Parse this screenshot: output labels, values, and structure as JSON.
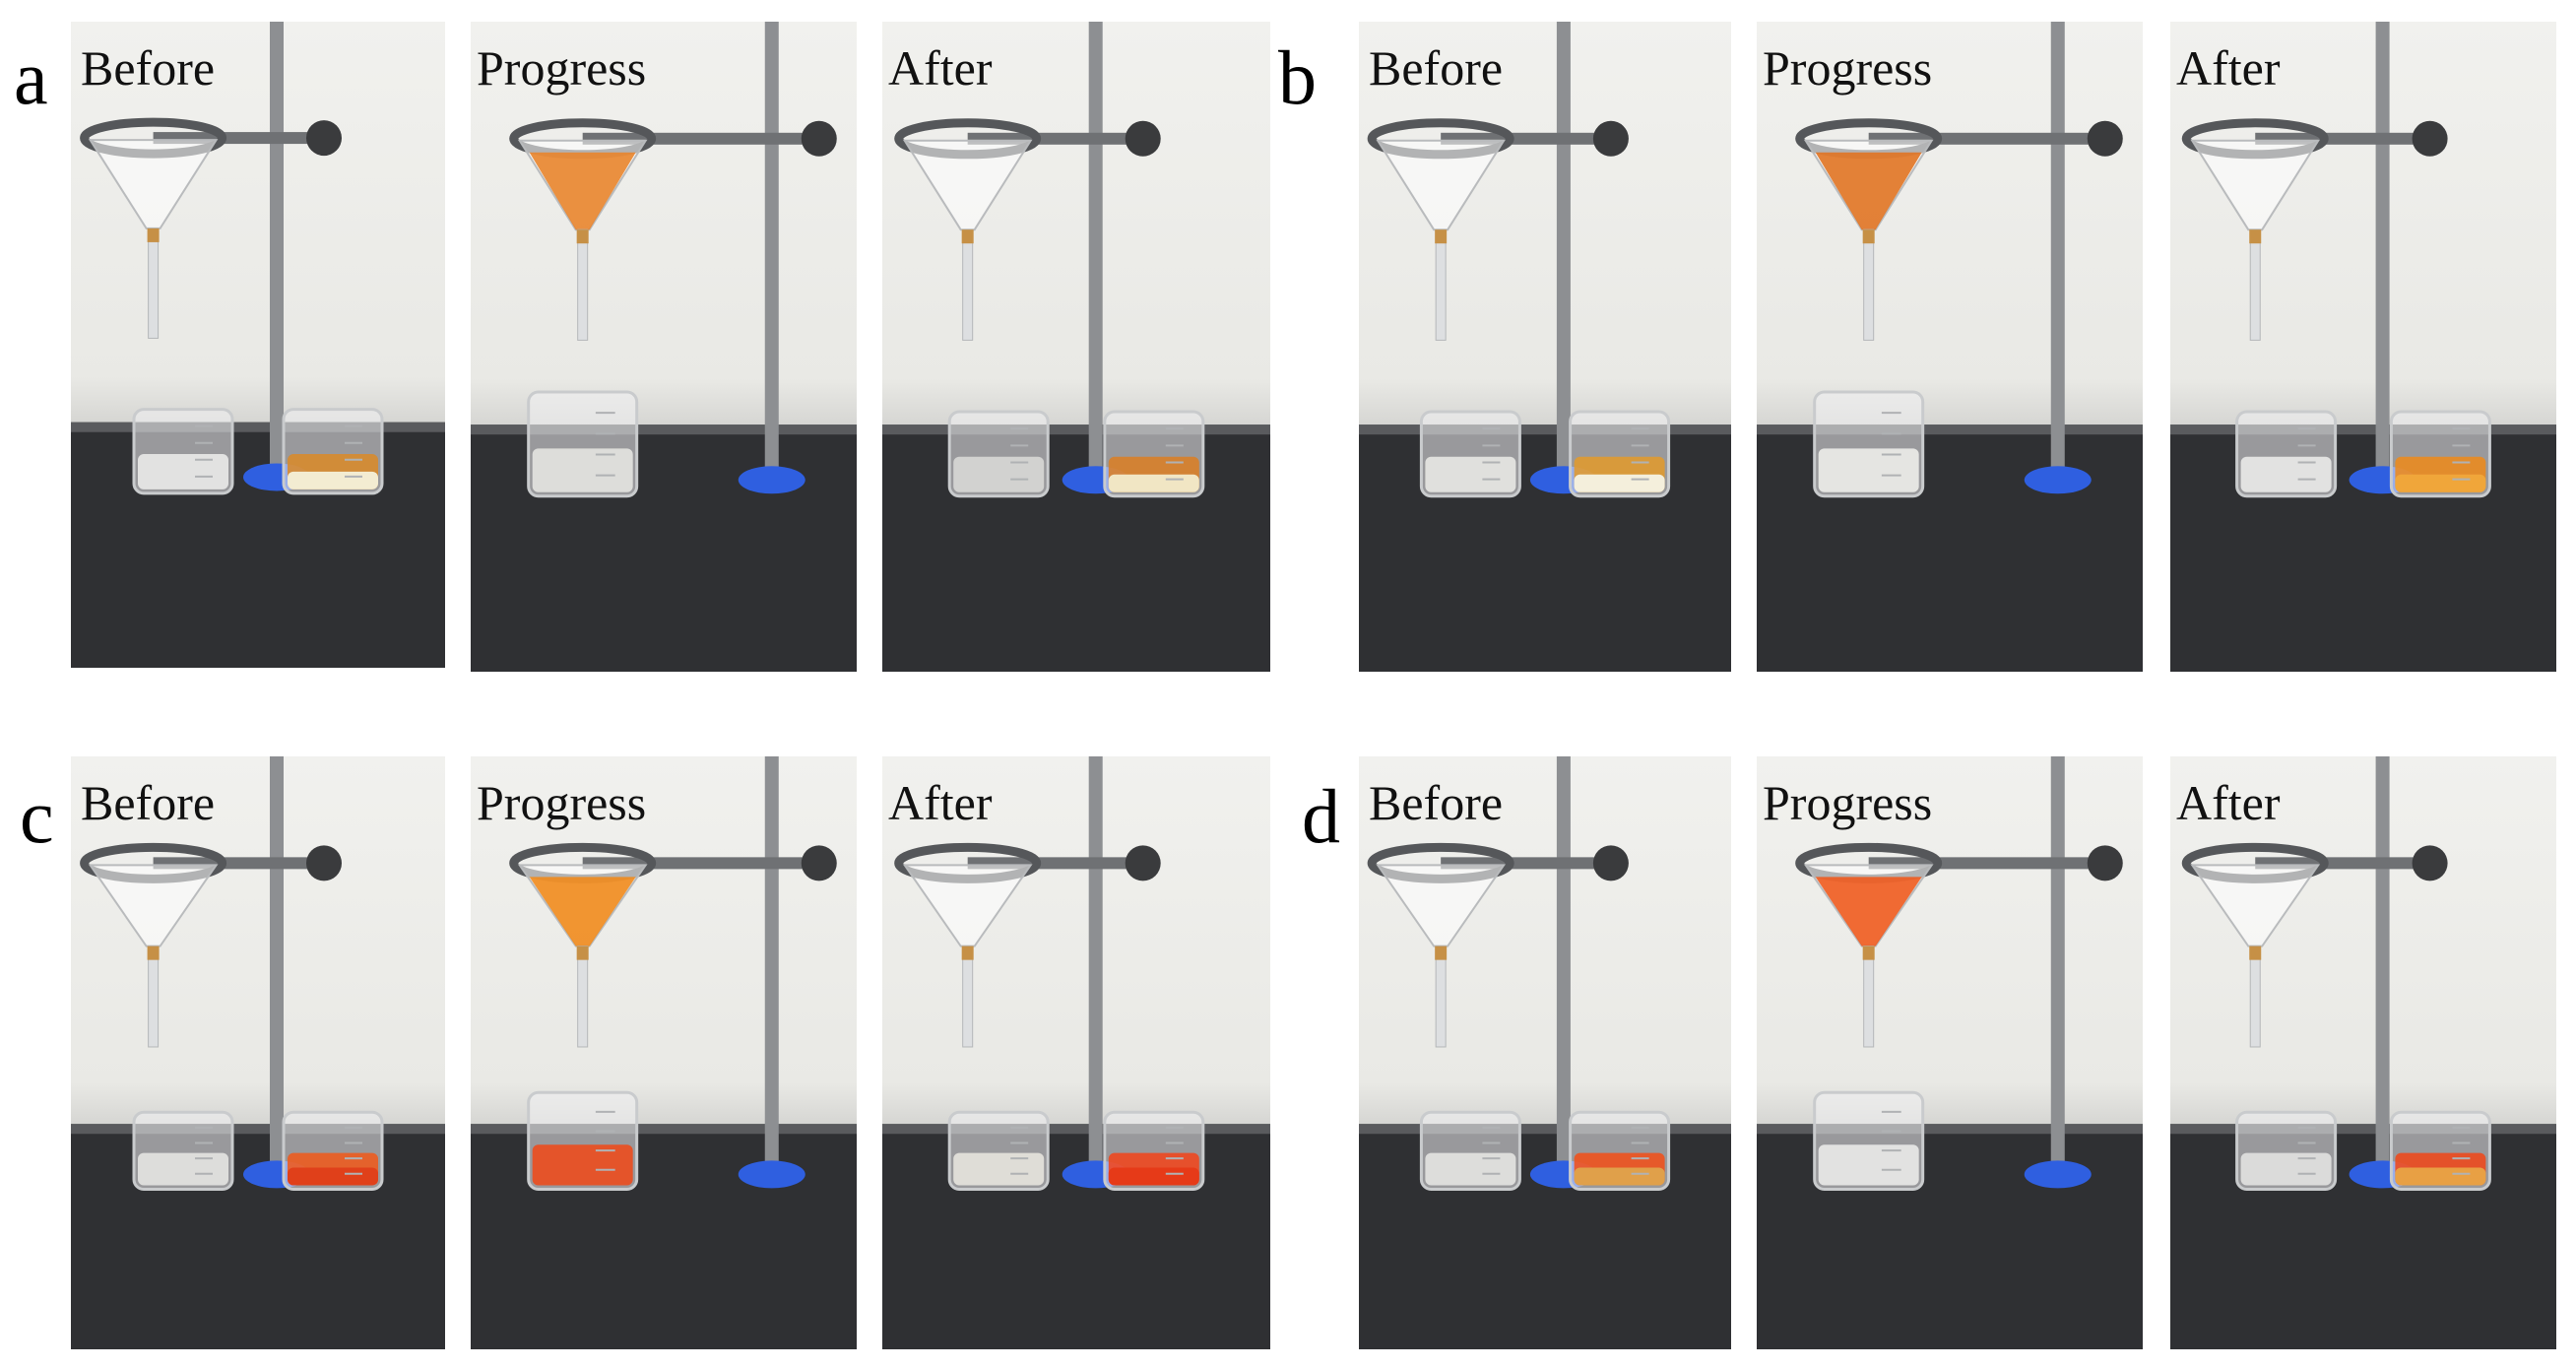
{
  "figure": {
    "panels": [
      {
        "letter": "a",
        "stages": [
          {
            "label": "Before",
            "funnel_liquid": "",
            "left_beaker_liquid": "#ececea",
            "right_beaker_liquid": "#d88a2a",
            "right_beaker_bottom": "#f3ecd2"
          },
          {
            "label": "Progress",
            "funnel_liquid": "#e8842c",
            "left_beaker_liquid": "#e6e6e2",
            "right_beaker_liquid": "",
            "right_beaker_bottom": ""
          },
          {
            "label": "After",
            "funnel_liquid": "",
            "left_beaker_liquid": "#d9d9d7",
            "right_beaker_liquid": "#d97e26",
            "right_beaker_bottom": "#f1e6c4"
          }
        ]
      },
      {
        "letter": "b",
        "stages": [
          {
            "label": "Before",
            "funnel_liquid": "",
            "left_beaker_liquid": "#e9e9e6",
            "right_beaker_liquid": "#e09a2e",
            "right_beaker_bottom": "#f4efdc"
          },
          {
            "label": "Progress",
            "funnel_liquid": "#e07322",
            "left_beaker_liquid": "#efefec",
            "right_beaker_liquid": "",
            "right_beaker_bottom": ""
          },
          {
            "label": "After",
            "funnel_liquid": "",
            "left_beaker_liquid": "#ececea",
            "right_beaker_liquid": "#ec8a1c",
            "right_beaker_bottom": "#f0a63a"
          }
        ]
      },
      {
        "letter": "c",
        "stages": [
          {
            "label": "Before",
            "funnel_liquid": "",
            "left_beaker_liquid": "#e6e6e4",
            "right_beaker_liquid": "#ee5a1c",
            "right_beaker_bottom": "#e0401a"
          },
          {
            "label": "Progress",
            "funnel_liquid": "#f08a1c",
            "left_beaker_liquid": "#ee4a1a",
            "right_beaker_liquid": "",
            "right_beaker_bottom": ""
          },
          {
            "label": "After",
            "funnel_liquid": "",
            "left_beaker_liquid": "#e8e6df",
            "right_beaker_liquid": "#f0461c",
            "right_beaker_bottom": "#e63a18"
          }
        ]
      },
      {
        "letter": "d",
        "stages": [
          {
            "label": "Before",
            "funnel_liquid": "",
            "left_beaker_liquid": "#e6e6e4",
            "right_beaker_liquid": "#f0501a",
            "right_beaker_bottom": "#e0a04a"
          },
          {
            "label": "Progress",
            "funnel_liquid": "#ee5a1e",
            "left_beaker_liquid": "#ececea",
            "right_beaker_liquid": "",
            "right_beaker_bottom": ""
          },
          {
            "label": "After",
            "funnel_liquid": "",
            "left_beaker_liquid": "#e4e4e2",
            "right_beaker_liquid": "#ee481a",
            "right_beaker_bottom": "#e8a044"
          }
        ]
      }
    ]
  }
}
